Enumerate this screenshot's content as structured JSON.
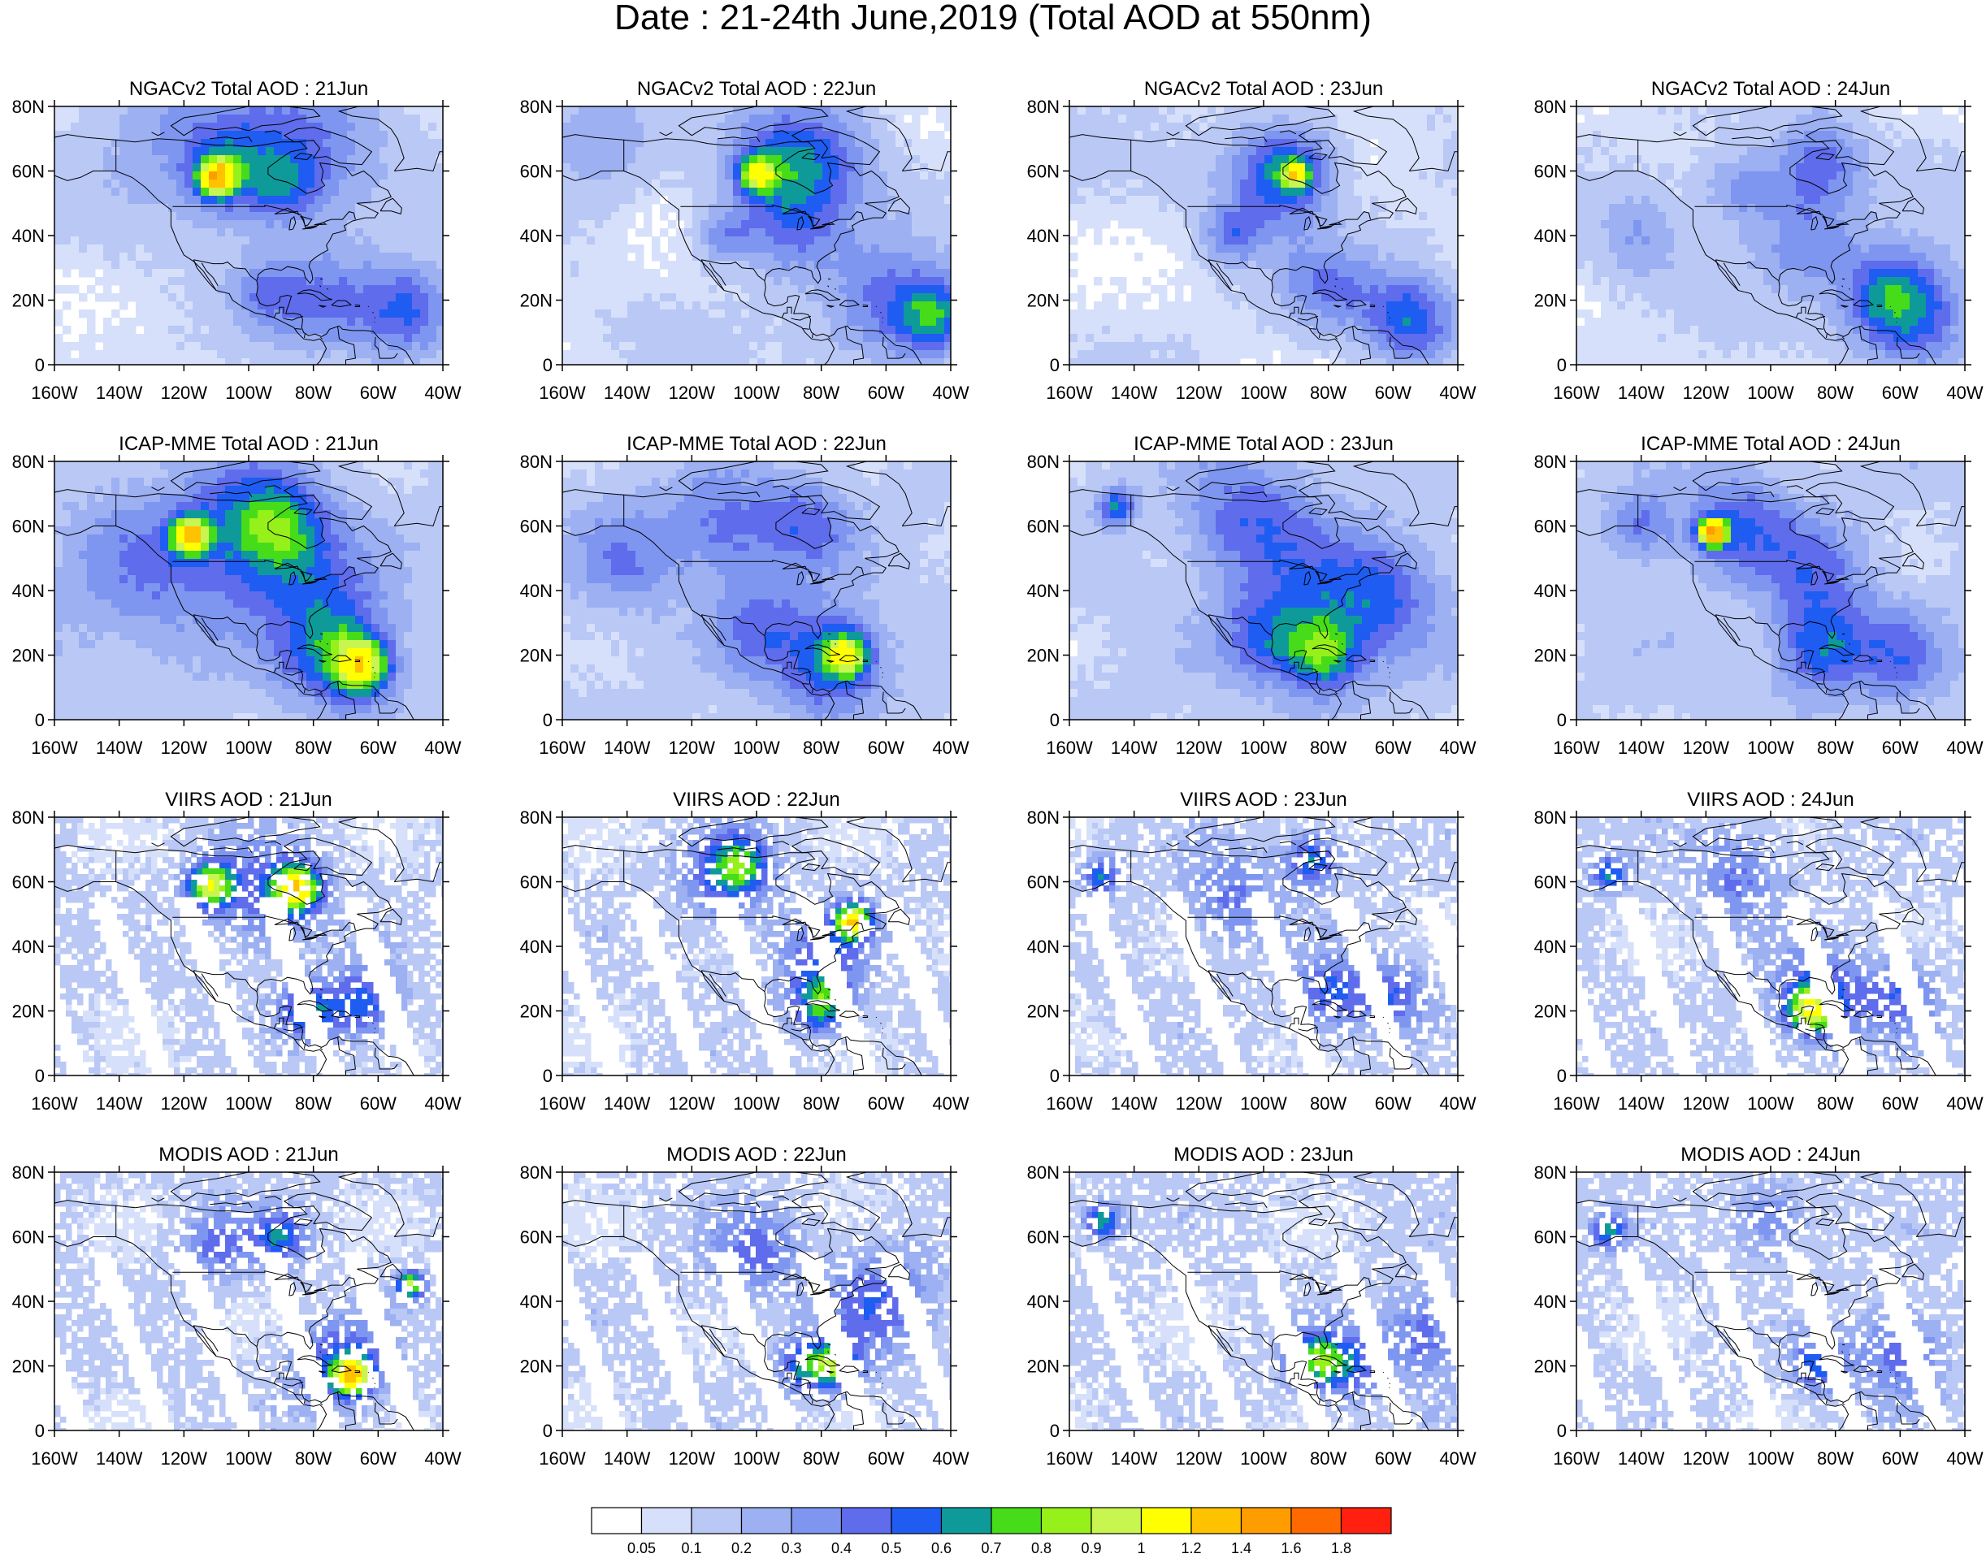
{
  "title": "Date : 21-24th June,2019 (Total AOD at 550nm)",
  "rows": [
    {
      "product": "NGACv2 Total AOD",
      "key": "ngac"
    },
    {
      "product": "ICAP-MME Total AOD",
      "key": "icap"
    },
    {
      "product": "VIIRS AOD",
      "key": "viirs"
    },
    {
      "product": "MODIS AOD",
      "key": "modis"
    }
  ],
  "dates": [
    "21Jun",
    "22Jun",
    "23Jun",
    "24Jun"
  ],
  "panel_titles": [
    [
      "NGACv2 Total AOD : 21Jun",
      "NGACv2 Total AOD : 22Jun",
      "NGACv2 Total AOD : 23Jun",
      "NGACv2 Total AOD : 24Jun"
    ],
    [
      "ICAP-MME Total AOD : 21Jun",
      "ICAP-MME Total AOD : 22Jun",
      "ICAP-MME Total AOD : 23Jun",
      "ICAP-MME Total AOD : 24Jun"
    ],
    [
      "VIIRS AOD : 21Jun",
      "VIIRS AOD : 22Jun",
      "VIIRS AOD : 23Jun",
      "VIIRS AOD : 24Jun"
    ],
    [
      "MODIS AOD : 21Jun",
      "MODIS AOD : 22Jun",
      "MODIS AOD : 23Jun",
      "MODIS AOD : 24Jun"
    ]
  ],
  "lon_range": [
    -160,
    -40
  ],
  "lat_range": [
    0,
    80
  ],
  "lon_ticks": [
    "160W",
    "140W",
    "120W",
    "100W",
    "80W",
    "60W",
    "40W"
  ],
  "lat_ticks": [
    "0",
    "20N",
    "40N",
    "60N",
    "80N"
  ],
  "colorbar": {
    "colors": [
      "#ffffff",
      "#d6e0fa",
      "#bac8f6",
      "#9cb0f2",
      "#7e96f0",
      "#5f6cec",
      "#1f5cf2",
      "#0f9a9a",
      "#46dc1a",
      "#96f01a",
      "#c8f550",
      "#ffff00",
      "#ffc200",
      "#ff9c00",
      "#ff6a00",
      "#ff2010"
    ],
    "labels": [
      "0.05",
      "0.1",
      "0.2",
      "0.3",
      "0.4",
      "0.5",
      "0.6",
      "0.7",
      "0.8",
      "0.9",
      "1",
      "1.2",
      "1.4",
      "1.6",
      "1.8"
    ]
  },
  "coast_color": "#000000"
}
